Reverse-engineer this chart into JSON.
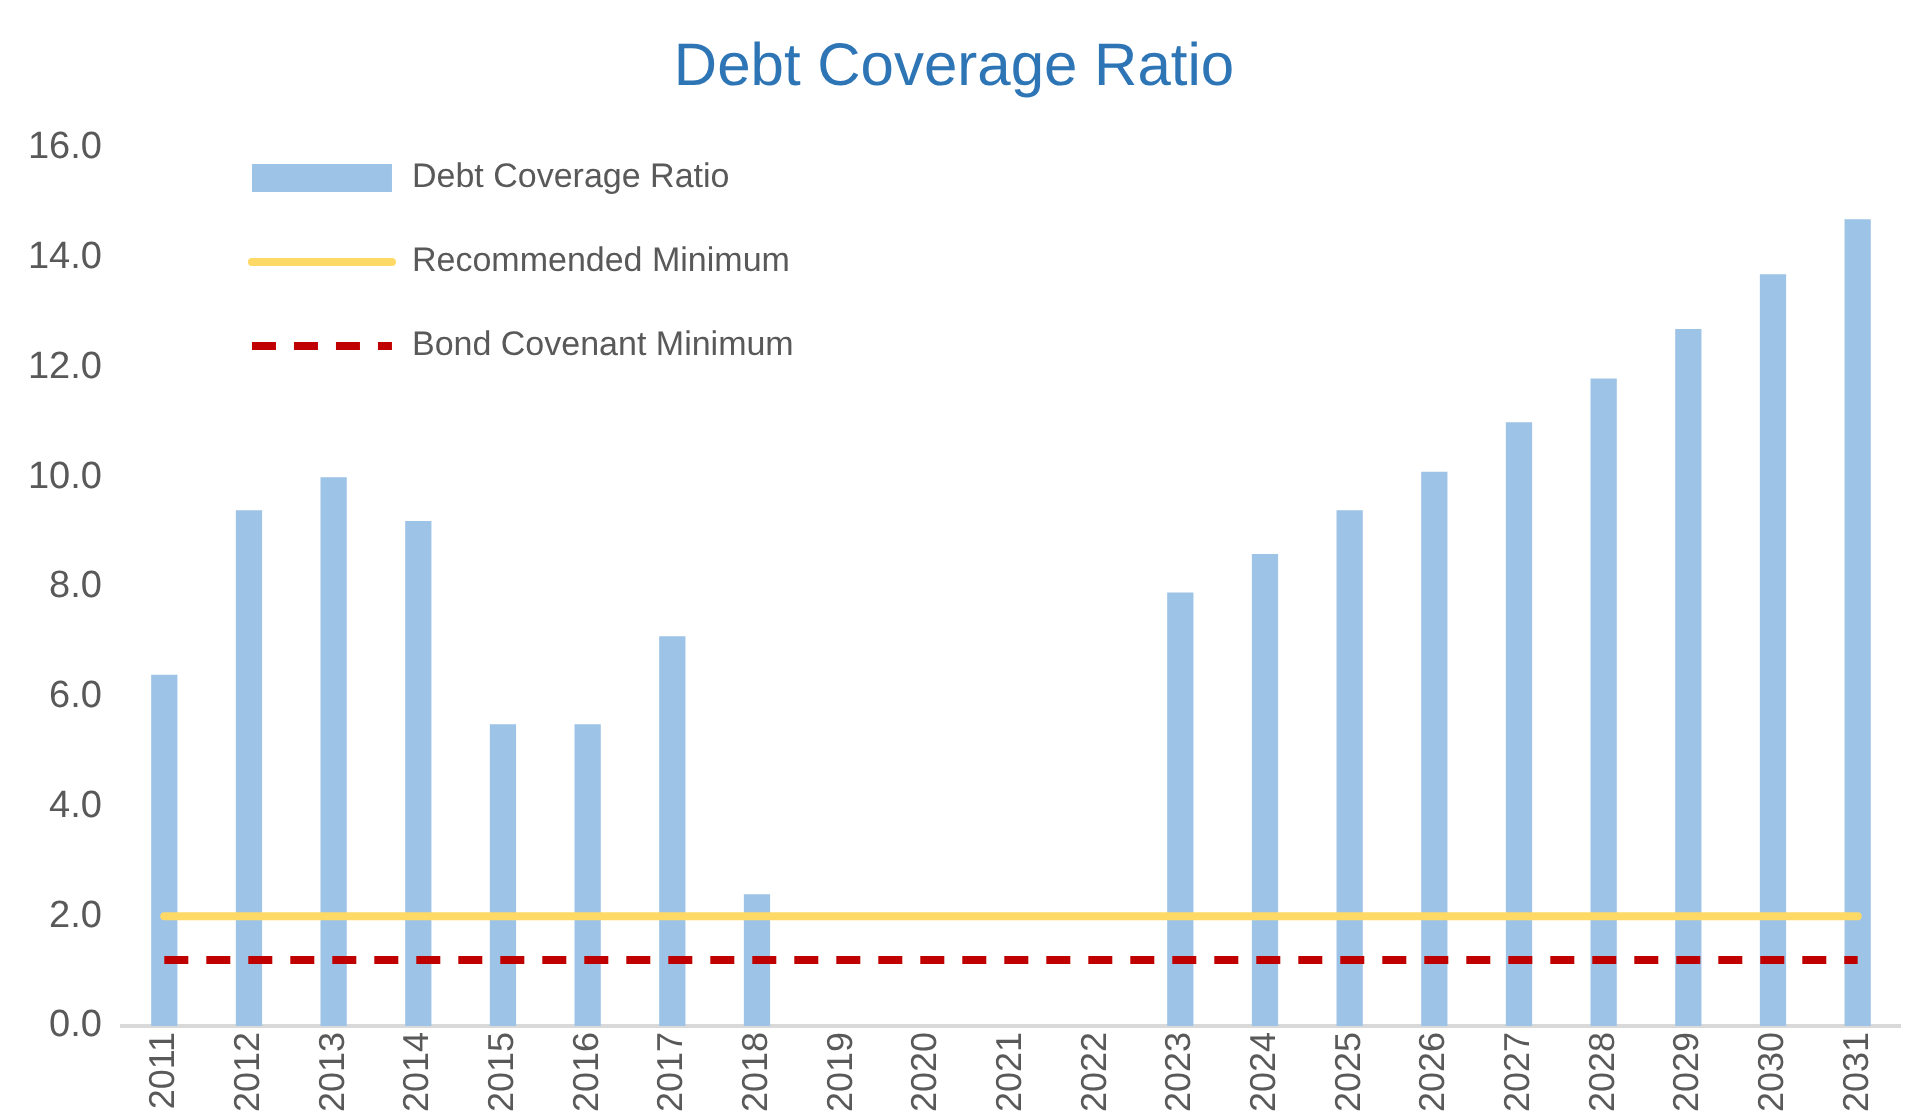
{
  "chart_data": {
    "type": "bar",
    "title": "Debt Coverage Ratio",
    "categories": [
      "2011",
      "2012",
      "2013",
      "2014",
      "2015",
      "2016",
      "2017",
      "2018",
      "2019",
      "2020",
      "2021",
      "2022",
      "2023",
      "2024",
      "2025",
      "2026",
      "2027",
      "2028",
      "2029",
      "2030",
      "2031"
    ],
    "series": [
      {
        "name": "Debt Coverage Ratio",
        "color": "#9dc3e6",
        "values": [
          6.4,
          9.4,
          10.0,
          9.2,
          5.5,
          5.5,
          7.1,
          2.4,
          null,
          null,
          null,
          null,
          7.9,
          8.6,
          9.4,
          10.1,
          11.0,
          11.8,
          12.7,
          13.7,
          14.7
        ]
      },
      {
        "name": "Recommended Minimum",
        "type": "line",
        "color": "#ffd966",
        "line_style": "solid",
        "values": [
          2,
          2,
          2,
          2,
          2,
          2,
          2,
          2,
          2,
          2,
          2,
          2,
          2,
          2,
          2,
          2,
          2,
          2,
          2,
          2,
          2
        ]
      },
      {
        "name": "Bond Covenant Minimum",
        "type": "line",
        "color": "#c00000",
        "line_style": "dashed",
        "values": [
          1.2,
          1.2,
          1.2,
          1.2,
          1.2,
          1.2,
          1.2,
          1.2,
          1.2,
          1.2,
          1.2,
          1.2,
          1.2,
          1.2,
          1.2,
          1.2,
          1.2,
          1.2,
          1.2,
          1.2,
          1.2
        ]
      }
    ],
    "ylim": [
      0,
      16
    ],
    "yticks": [
      {
        "value": 0,
        "label": "0.0"
      },
      {
        "value": 2,
        "label": "2.0"
      },
      {
        "value": 4,
        "label": "4.0"
      },
      {
        "value": 6,
        "label": "6.0"
      },
      {
        "value": 8,
        "label": "8.0"
      },
      {
        "value": 10,
        "label": "10.0"
      },
      {
        "value": 12,
        "label": "12.0"
      },
      {
        "value": 14,
        "label": "14.0"
      },
      {
        "value": 16,
        "label": "16.0"
      }
    ],
    "grid": false,
    "legend": "top left",
    "marker": "none"
  }
}
